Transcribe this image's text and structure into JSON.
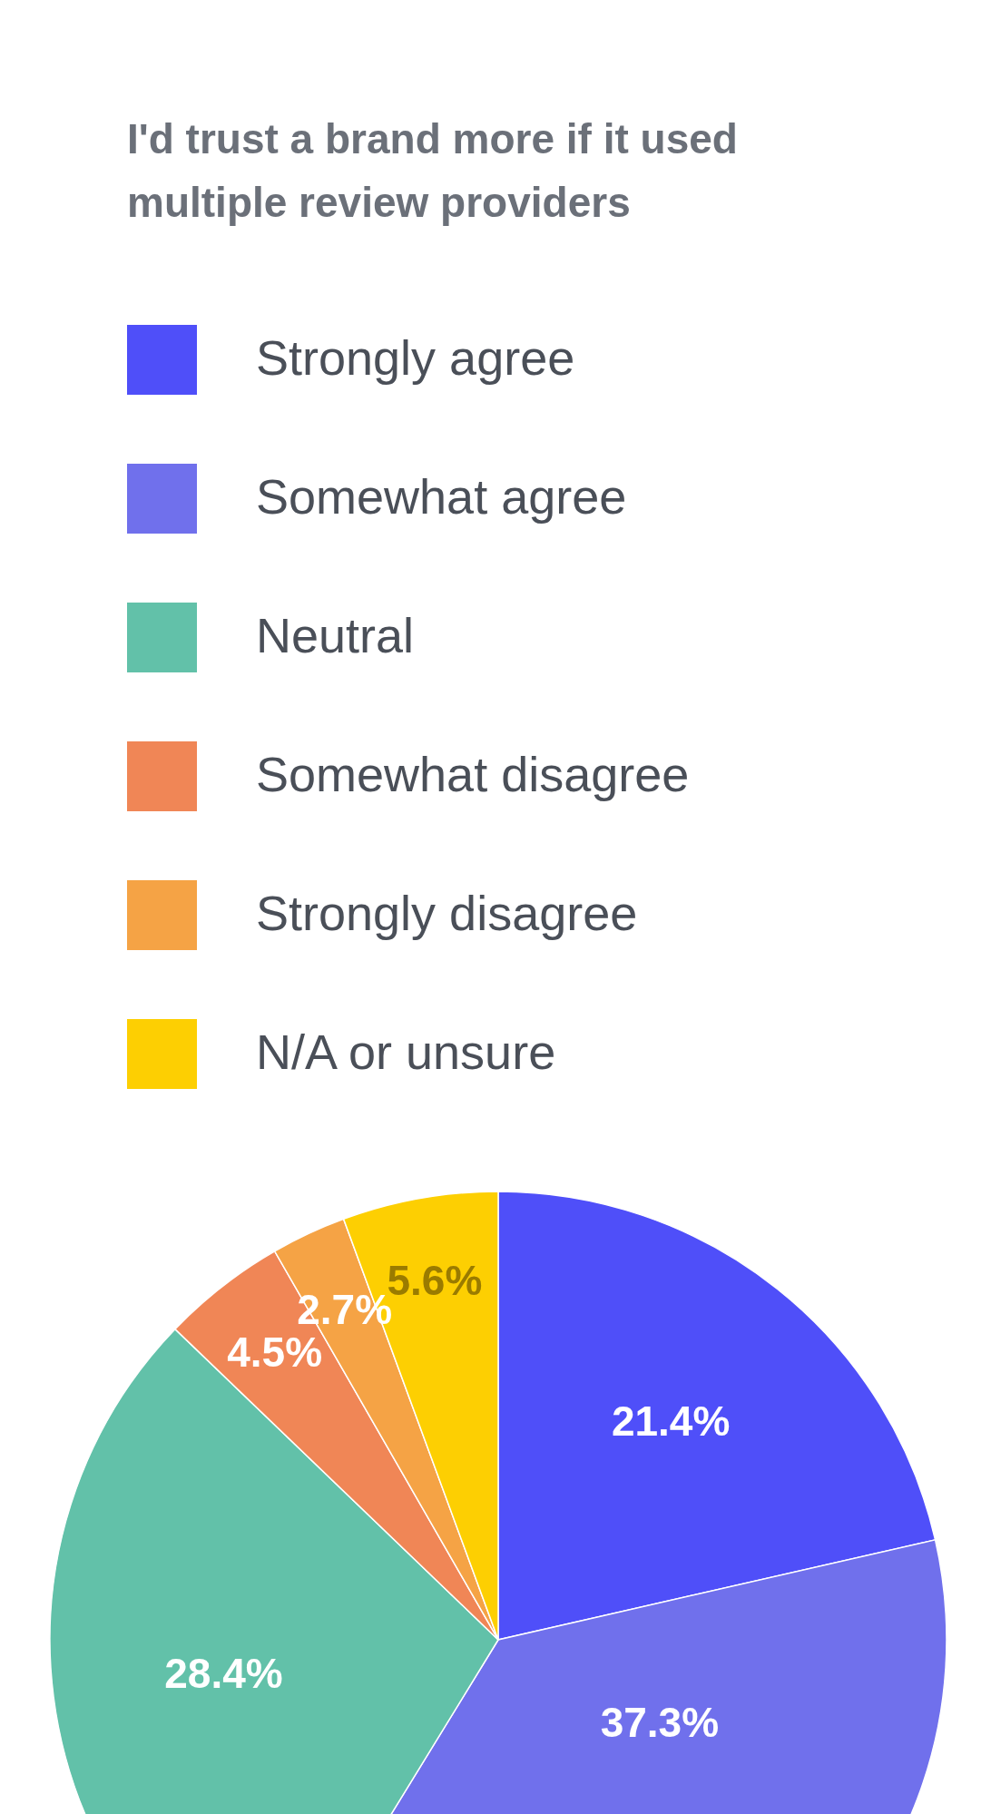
{
  "chart_data": {
    "type": "pie",
    "title": "I'd trust a brand more if it used multiple review providers",
    "categories": [
      "Strongly agree",
      "Somewhat agree",
      "Neutral",
      "Somewhat disagree",
      "Strongly disagree",
      "N/A or unsure"
    ],
    "values": [
      21.4,
      37.3,
      28.4,
      4.5,
      2.7,
      5.6
    ],
    "colors": [
      "#4f4ff9",
      "#7070ec",
      "#62c1a9",
      "#f08656",
      "#f5a345",
      "#fdcf02"
    ],
    "value_labels": [
      "21.4%",
      "37.3%",
      "28.4%",
      "4.5%",
      "2.7%",
      "5.6%"
    ],
    "legend": "top left"
  }
}
